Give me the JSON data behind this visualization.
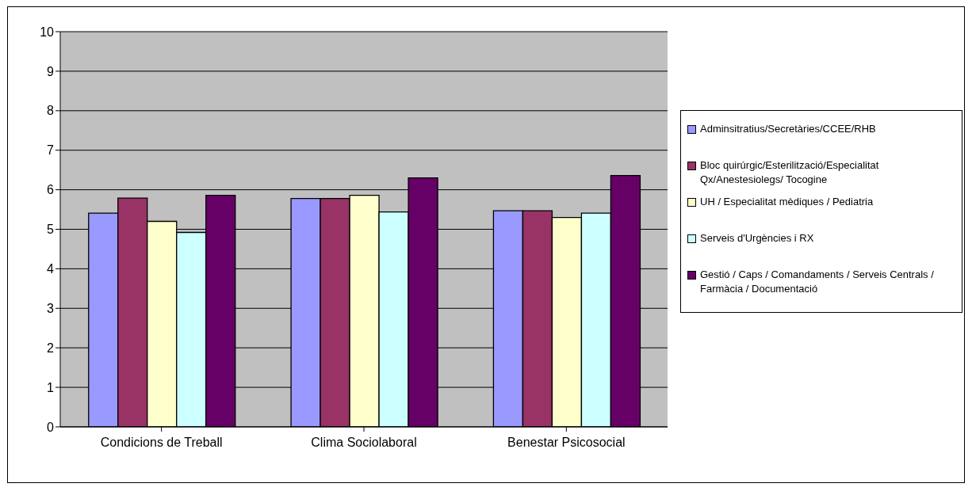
{
  "chart_data": {
    "type": "bar",
    "categories": [
      "Condicions de Treball",
      "Clima Sociolaboral",
      "Benestar Psicosocial"
    ],
    "series": [
      {
        "name": "Adminsitratius/Secretàries/CCEE/RHB",
        "color": "#9999ff",
        "values": [
          5.41,
          5.78,
          5.47
        ]
      },
      {
        "name": "Bloc quirúrgic/Esterilització/Especialitat Qx/Anestesiolegs/ Tocogine",
        "color": "#993366",
        "values": [
          5.79,
          5.78,
          5.47
        ]
      },
      {
        "name": "UH / Especialitat mèdiques / Pediatria",
        "color": "#ffffcc",
        "values": [
          5.2,
          5.86,
          5.3
        ]
      },
      {
        "name": "Serveis d'Urgències i RX",
        "color": "#ccffff",
        "values": [
          4.92,
          5.44,
          5.41
        ]
      },
      {
        "name": "Gestió / Caps / Comandaments / Serveis Centrals / Farmàcia / Documentació",
        "color": "#660066",
        "values": [
          5.86,
          6.3,
          6.36
        ]
      }
    ],
    "ylim": [
      0,
      10
    ],
    "yticks": [
      0,
      1,
      2,
      3,
      4,
      5,
      6,
      7,
      8,
      9,
      10
    ],
    "grid": "y",
    "legend": "right"
  }
}
